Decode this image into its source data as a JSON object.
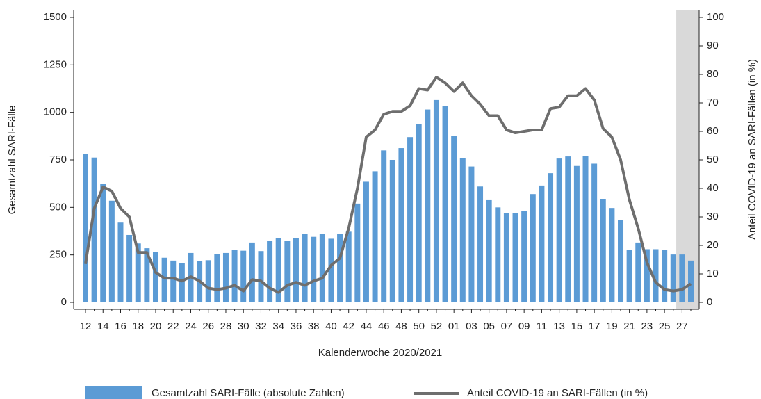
{
  "chart_data": {
    "type": "bar",
    "x_label": "Kalenderwoche 2020/2021",
    "y_label": "Gesamtzahl SARI-Fälle",
    "y2_label": "Anteil COVID-19 an SARI-Fällen (in %)",
    "categories": [
      "12",
      null,
      "14",
      null,
      "16",
      null,
      "18",
      null,
      "20",
      null,
      "22",
      null,
      "24",
      null,
      "26",
      null,
      "28",
      null,
      "30",
      null,
      "32",
      null,
      "34",
      null,
      "36",
      null,
      "38",
      null,
      "40",
      null,
      "42",
      null,
      "44",
      null,
      "46",
      null,
      "48",
      null,
      "50",
      null,
      "52",
      null,
      "01",
      null,
      "03",
      null,
      "05",
      null,
      "07",
      null,
      "09",
      null,
      "11",
      null,
      "13",
      null,
      "15",
      null,
      "17",
      null,
      "19",
      null,
      "21",
      null,
      "23",
      null,
      "25",
      null,
      "27",
      null
    ],
    "series": [
      {
        "name": "Gesamtzahl SARI-Fälle (absolute Zahlen)",
        "type": "bar",
        "color": "#5b9bd5",
        "values": [
          780,
          762,
          625,
          535,
          420,
          355,
          310,
          285,
          265,
          235,
          220,
          205,
          260,
          218,
          222,
          255,
          260,
          275,
          272,
          315,
          270,
          325,
          340,
          325,
          340,
          360,
          345,
          362,
          335,
          360,
          372,
          520,
          635,
          690,
          800,
          750,
          812,
          870,
          940,
          1015,
          1065,
          1035,
          875,
          760,
          715,
          610,
          538,
          500,
          470,
          470,
          482,
          570,
          615,
          680,
          757,
          768,
          718,
          770,
          730,
          545,
          497,
          435,
          275,
          315,
          280,
          280,
          275,
          252,
          252,
          220
        ]
      },
      {
        "name": "Anteil COVID-19 an SARI-Fällen (in %)",
        "type": "line",
        "axis": "y2",
        "color": "#6e6e6e",
        "values": [
          13.5,
          33,
          40.5,
          39,
          33,
          30,
          17.5,
          17.5,
          10.5,
          8.5,
          8.5,
          7.5,
          9,
          7.5,
          5,
          4.5,
          5,
          6,
          4,
          8,
          7.5,
          5,
          3.5,
          6,
          7,
          6,
          7.5,
          8.5,
          13,
          15.5,
          26,
          40,
          58,
          60.5,
          66,
          67,
          67,
          69,
          75,
          74.5,
          79,
          77,
          74,
          77,
          72.5,
          69.5,
          65.5,
          65.5,
          60.5,
          59.5,
          60,
          60.5,
          60.5,
          68,
          68.5,
          72.5,
          72.5,
          75,
          71,
          61,
          58,
          50,
          36,
          26,
          14,
          7,
          4.5,
          4,
          4.5,
          6.5
        ]
      }
    ],
    "ylim": [
      0,
      1500
    ],
    "yticks": [
      0,
      250,
      500,
      750,
      1000,
      1250,
      1500
    ],
    "y2lim": [
      0,
      100
    ],
    "y2ticks": [
      0,
      10,
      20,
      30,
      40,
      50,
      60,
      70,
      80,
      90,
      100
    ]
  }
}
